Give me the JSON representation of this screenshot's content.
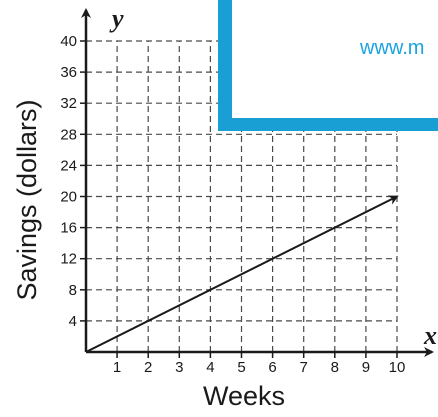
{
  "chart_data": {
    "type": "line",
    "xlabel": "Weeks",
    "ylabel": "Savings (dollars)",
    "x_axis_var": "x",
    "y_axis_var": "y",
    "xlim": [
      0,
      10
    ],
    "ylim": [
      0,
      40
    ],
    "x_ticks": [
      1,
      2,
      3,
      4,
      5,
      6,
      7,
      8,
      9,
      10
    ],
    "y_ticks": [
      4,
      8,
      12,
      16,
      20,
      24,
      28,
      32,
      36,
      40
    ],
    "grid": true,
    "grid_style": "dashed",
    "series": [
      {
        "x": [
          0,
          10
        ],
        "y": [
          0,
          20
        ],
        "arrow_end": true
      }
    ]
  },
  "watermark": {
    "text": "www.m",
    "color": "#1aa3e0",
    "frame_color": "#1a9fd4"
  }
}
